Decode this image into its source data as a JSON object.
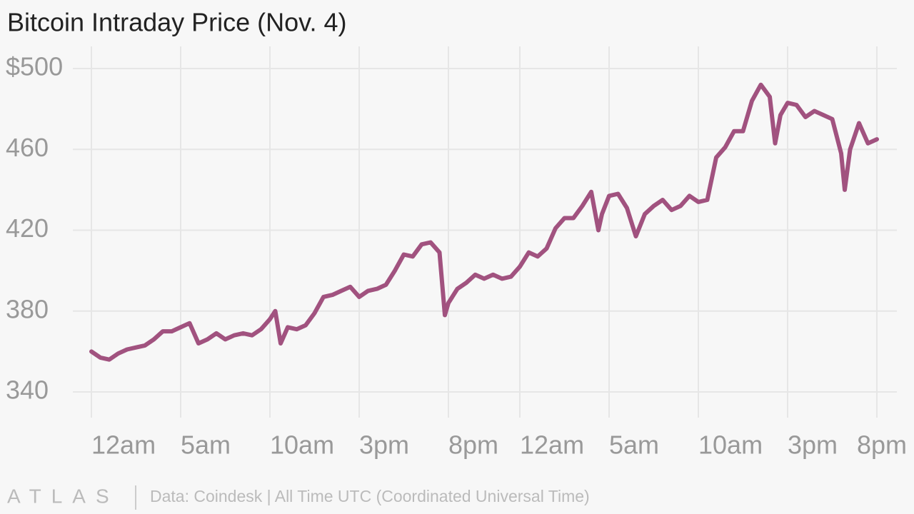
{
  "chart_data": {
    "type": "line",
    "title": "Bitcoin Intraday Price (Nov. 4)",
    "logo": "ATLAS",
    "source": "Data: Coindesk | All Time UTC (Coordinated Universal Time)",
    "color": "#a1527f",
    "grid": true,
    "xlim": [
      0,
      44
    ],
    "xticks": [
      {
        "value": 0,
        "label": "12am"
      },
      {
        "value": 5,
        "label": "5am"
      },
      {
        "value": 10,
        "label": "10am"
      },
      {
        "value": 15,
        "label": "3pm"
      },
      {
        "value": 20,
        "label": "8pm"
      },
      {
        "value": 24,
        "label": "12am"
      },
      {
        "value": 29,
        "label": "5am"
      },
      {
        "value": 34,
        "label": "10am"
      },
      {
        "value": 39,
        "label": "3pm"
      },
      {
        "value": 44,
        "label": "8pm"
      }
    ],
    "ylim": [
      330,
      510
    ],
    "yticks": [
      {
        "value": 500,
        "label": "$500"
      },
      460,
      420,
      380,
      340
    ],
    "x": [
      0,
      0.5,
      1,
      1.5,
      2,
      2.5,
      3,
      3.5,
      4,
      4.5,
      5,
      5.5,
      6,
      6.5,
      7,
      7.5,
      8,
      8.5,
      9,
      9.5,
      10,
      10.3,
      10.6,
      11,
      11.5,
      12,
      12.5,
      13,
      13.5,
      14,
      14.5,
      15,
      15.5,
      16,
      16.5,
      17,
      17.5,
      18,
      18.5,
      19,
      19.5,
      19.8,
      20,
      20.5,
      21,
      21.5,
      22,
      22.5,
      23,
      23.5,
      24,
      24.5,
      25,
      25.5,
      26,
      26.5,
      27,
      27.5,
      28,
      28.4,
      28.6,
      29,
      29.5,
      30,
      30.5,
      31,
      31.5,
      32,
      32.5,
      33,
      33.5,
      34,
      34.5,
      35,
      35.5,
      36,
      36.5,
      37,
      37.5,
      38,
      38.3,
      38.6,
      39,
      39.5,
      40,
      40.5,
      41,
      41.5,
      42,
      42.2,
      42.5,
      43,
      43.5,
      44
    ],
    "values": [
      360,
      357,
      356,
      359,
      361,
      362,
      363,
      366,
      370,
      370,
      372,
      374,
      364,
      366,
      369,
      366,
      368,
      369,
      368,
      371,
      376,
      380,
      364,
      372,
      371,
      373,
      379,
      387,
      388,
      390,
      392,
      387,
      390,
      391,
      393,
      400,
      408,
      407,
      413,
      414,
      409,
      378,
      384,
      391,
      394,
      398,
      396,
      398,
      396,
      397,
      402,
      409,
      407,
      411,
      421,
      426,
      426,
      432,
      439,
      420,
      428,
      437,
      438,
      431,
      417,
      428,
      432,
      435,
      430,
      432,
      437,
      434,
      435,
      456,
      461,
      469,
      469,
      484,
      492,
      486,
      463,
      477,
      483,
      482,
      476,
      479,
      477,
      475,
      458,
      440,
      460,
      473,
      463,
      465
    ]
  }
}
